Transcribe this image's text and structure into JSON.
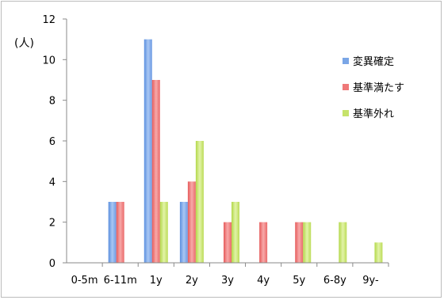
{
  "chart_data": {
    "type": "bar",
    "ylabel": "(人)",
    "ylim": [
      0,
      12
    ],
    "yticks": [
      0,
      2,
      4,
      6,
      8,
      10,
      12
    ],
    "categories": [
      "0-5m",
      "6-11m",
      "1y",
      "2y",
      "3y",
      "4y",
      "5y",
      "6-8y",
      "9y-"
    ],
    "series": [
      {
        "name": "変異確定",
        "color": "#7aa6e6",
        "values": [
          0,
          3,
          11,
          3,
          0,
          0,
          0,
          0,
          0
        ]
      },
      {
        "name": "基準満たす",
        "color": "#ef7878",
        "values": [
          0,
          3,
          9,
          4,
          2,
          2,
          2,
          0,
          0
        ]
      },
      {
        "name": "基準外れ",
        "color": "#c6e36a",
        "values": [
          0,
          0,
          3,
          6,
          3,
          0,
          2,
          2,
          1
        ]
      }
    ],
    "legend": "right",
    "grid": false
  }
}
